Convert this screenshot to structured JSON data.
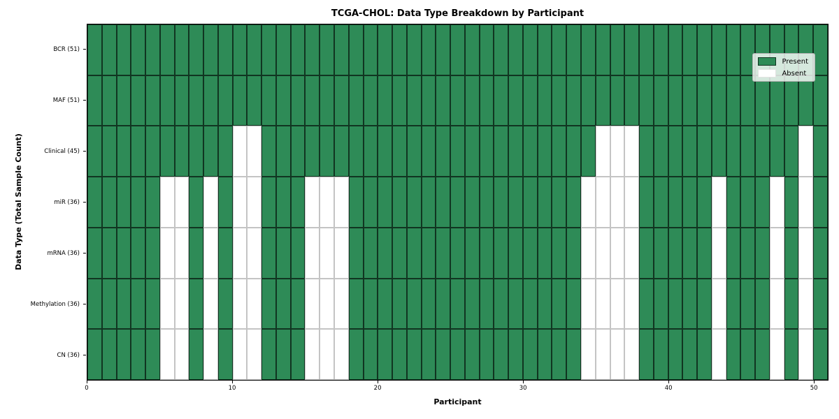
{
  "chart_data": {
    "type": "heatmap",
    "title": "TCGA-CHOL: Data Type Breakdown by Participant",
    "xlabel": "Participant",
    "ylabel": "Data Type (Total Sample Count)",
    "n_participants": 51,
    "x_ticks": [
      0,
      10,
      20,
      30,
      40,
      50
    ],
    "xlim": [
      0,
      51
    ],
    "grid": true,
    "legend_position": "upper right",
    "colors": {
      "present": "#2E8B57",
      "absent": "#FFFFFF"
    },
    "legend": [
      {
        "label": "Present",
        "color": "#2E8B57"
      },
      {
        "label": "Absent",
        "color": "#FFFFFF"
      }
    ],
    "rows": [
      {
        "label": "BCR (51)",
        "total": 51,
        "absent_participants": []
      },
      {
        "label": "MAF (51)",
        "total": 51,
        "absent_participants": []
      },
      {
        "label": "Clinical (45)",
        "total": 45,
        "absent_participants": [
          10,
          11,
          35,
          36,
          37,
          49
        ]
      },
      {
        "label": "miR (36)",
        "total": 36,
        "absent_participants": [
          5,
          6,
          8,
          10,
          11,
          15,
          16,
          17,
          34,
          35,
          36,
          37,
          43,
          47,
          49
        ]
      },
      {
        "label": "mRNA (36)",
        "total": 36,
        "absent_participants": [
          5,
          6,
          8,
          10,
          11,
          15,
          16,
          17,
          34,
          35,
          36,
          37,
          43,
          47,
          49
        ]
      },
      {
        "label": "Methylation (36)",
        "total": 36,
        "absent_participants": [
          5,
          6,
          8,
          10,
          11,
          15,
          16,
          17,
          34,
          35,
          36,
          37,
          43,
          47,
          49
        ]
      },
      {
        "label": "CN (36)",
        "total": 36,
        "absent_participants": [
          5,
          6,
          8,
          10,
          11,
          15,
          16,
          17,
          34,
          35,
          36,
          37,
          43,
          47,
          49
        ]
      }
    ]
  }
}
